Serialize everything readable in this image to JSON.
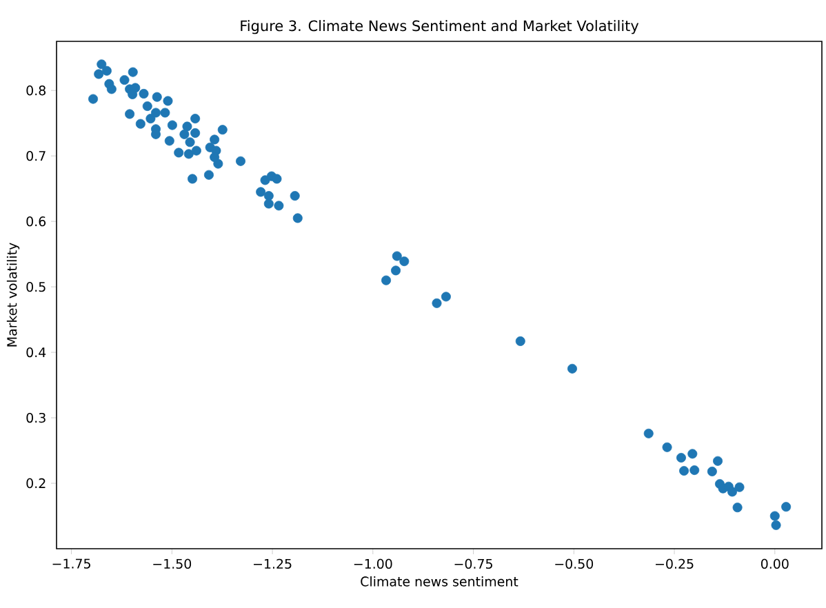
{
  "chart_data": {
    "type": "scatter",
    "title": "Figure 3. Climate News Sentiment and Market Volatility",
    "xlabel": "Climate news sentiment",
    "ylabel": "Market volatility",
    "marker": "circle",
    "xlim": [
      -1.787,
      0.117
    ],
    "ylim": [
      0.1,
      0.875
    ],
    "xticks": [
      {
        "value": -1.75,
        "label": "−1.75"
      },
      {
        "value": -1.5,
        "label": "−1.50"
      },
      {
        "value": -1.25,
        "label": "−1.25"
      },
      {
        "value": -1.0,
        "label": "−1.00"
      },
      {
        "value": -0.75,
        "label": "−0.75"
      },
      {
        "value": -0.5,
        "label": "−0.50"
      },
      {
        "value": -0.25,
        "label": "−0.25"
      },
      {
        "value": 0.0,
        "label": "0.00"
      }
    ],
    "yticks": [
      0.2,
      0.3,
      0.4,
      0.5,
      0.6,
      0.7,
      0.8
    ],
    "series": [
      {
        "color": "#1f77b4",
        "x": [
          -1.696,
          -1.675,
          -1.682,
          -1.662,
          -1.656,
          -1.65,
          -1.618,
          -1.597,
          -1.605,
          -1.591,
          -1.598,
          -1.605,
          -1.57,
          -1.578,
          -1.561,
          -1.553,
          -1.537,
          -1.54,
          -1.54,
          -1.54,
          -1.517,
          -1.51,
          -1.499,
          -1.506,
          -1.483,
          -1.462,
          -1.469,
          -1.455,
          -1.458,
          -1.442,
          -1.442,
          -1.439,
          -1.449,
          -1.408,
          -1.405,
          -1.394,
          -1.39,
          -1.385,
          -1.374,
          -1.394,
          -1.329,
          -1.279,
          -1.268,
          -1.252,
          -1.239,
          -1.259,
          -1.259,
          -1.234,
          -1.194,
          -1.187,
          -0.967,
          -0.943,
          -0.94,
          -0.922,
          -0.841,
          -0.818,
          -0.633,
          -0.504,
          -0.314,
          -0.268,
          -0.233,
          -0.205,
          -0.226,
          -0.2,
          -0.156,
          -0.142,
          -0.137,
          -0.129,
          -0.115,
          -0.106,
          -0.088,
          -0.093,
          0.0,
          0.003,
          0.028
        ],
        "values": [
          0.787,
          0.84,
          0.825,
          0.83,
          0.81,
          0.802,
          0.816,
          0.828,
          0.802,
          0.804,
          0.794,
          0.764,
          0.795,
          0.749,
          0.776,
          0.757,
          0.79,
          0.766,
          0.741,
          0.733,
          0.766,
          0.784,
          0.747,
          0.723,
          0.705,
          0.745,
          0.733,
          0.721,
          0.703,
          0.757,
          0.735,
          0.708,
          0.665,
          0.671,
          0.713,
          0.725,
          0.708,
          0.688,
          0.74,
          0.698,
          0.692,
          0.645,
          0.663,
          0.669,
          0.665,
          0.639,
          0.627,
          0.624,
          0.639,
          0.605,
          0.51,
          0.525,
          0.547,
          0.539,
          0.475,
          0.485,
          0.417,
          0.375,
          0.276,
          0.255,
          0.239,
          0.245,
          0.219,
          0.22,
          0.218,
          0.234,
          0.199,
          0.192,
          0.195,
          0.187,
          0.194,
          0.163,
          0.15,
          0.136,
          0.164
        ]
      }
    ]
  }
}
